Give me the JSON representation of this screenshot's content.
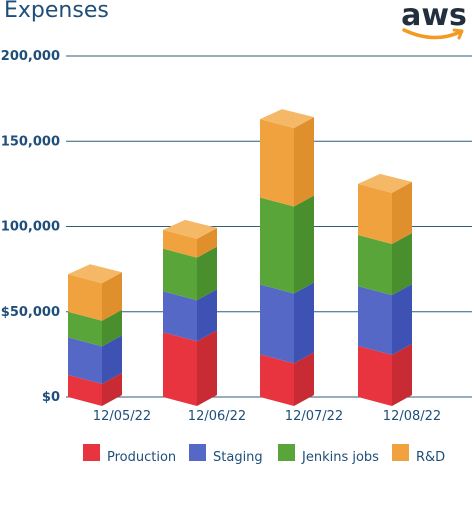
{
  "title": "Expenses",
  "logo": {
    "text": "aws",
    "text_color": "#232f3e",
    "smile_color": "#f29b21"
  },
  "colors": {
    "Production": {
      "front": "#e8343f",
      "side": "#c92b34",
      "top": "#ef6b72"
    },
    "Staging": {
      "front": "#5568c6",
      "side": "#3d52b3",
      "top": "#7a8ad6"
    },
    "Jenkins jobs": {
      "front": "#5aa53a",
      "side": "#4a8f2e",
      "top": "#7cc05c"
    },
    "R&D": {
      "front": "#f0a23f",
      "side": "#e08f2d",
      "top": "#f5b866"
    },
    "axis_text": "#1f4e79",
    "grid": "#2f5f7a"
  },
  "chart_data": {
    "type": "bar",
    "stacked": true,
    "title": "Expenses",
    "categories": [
      "12/05/22",
      "12/06/22",
      "12/07/22",
      "12/08/22"
    ],
    "series": [
      {
        "name": "Production",
        "values": [
          13000,
          38000,
          25000,
          30000
        ]
      },
      {
        "name": "Staging",
        "values": [
          22000,
          24000,
          41000,
          35000
        ]
      },
      {
        "name": "Jenkins jobs",
        "values": [
          15000,
          25000,
          51000,
          30000
        ]
      },
      {
        "name": "R&D",
        "values": [
          22000,
          11000,
          46000,
          30000
        ]
      }
    ],
    "ylim": [
      0,
      200000
    ],
    "yticks": [
      0,
      50000,
      100000,
      150000,
      200000
    ],
    "ytick_labels": [
      "$0",
      "$50,000",
      "$100,000",
      "$150,000",
      "$200,000"
    ],
    "grid": true,
    "legend_position": "bottom"
  }
}
